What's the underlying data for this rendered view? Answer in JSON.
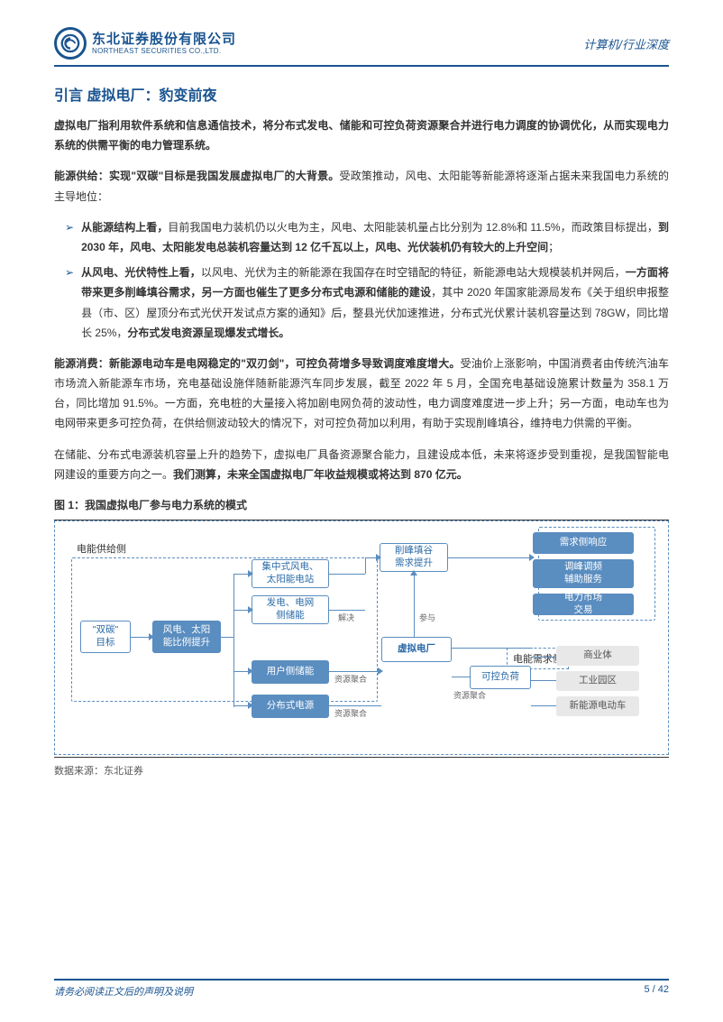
{
  "header": {
    "logo_cn": "东北证券股份有限公司",
    "logo_en": "NORTHEAST SECURITIES CO.,LTD.",
    "right": "计算机/行业深度"
  },
  "title": "引言 虚拟电厂：豹变前夜",
  "intro": "虚拟电厂指利用软件系统和信息通信技术，将分布式发电、储能和可控负荷资源聚合并进行电力调度的协调优化，从而实现电力系统的供需平衡的电力管理系统。",
  "p1_lead": "能源供给：实现\"双碳\"目标是我国发展虚拟电厂的大背景。",
  "p1_rest": "受政策推动，风电、太阳能等新能源将逐渐占据未来我国电力系统的主导地位：",
  "b1_a": "从能源结构上看，",
  "b1_b": "目前我国电力装机仍以火电为主，风电、太阳能装机量占比分别为 12.8%和 11.5%，而政策目标提出，",
  "b1_c": "到 2030 年，风电、太阳能发电总装机容量达到 12 亿千瓦以上，风电、光伏装机仍有较大的上升空间",
  "b1_d": "；",
  "b2_a": "从风电、光伏特性上看，",
  "b2_b": "以风电、光伏为主的新能源在我国存在时空错配的特征，新能源电站大规模装机并网后，",
  "b2_c": "一方面将带来更多削峰填谷需求，另一方面也催生了更多分布式电源和储能的建设",
  "b2_d": "，其中 2020 年国家能源局发布《关于组织申报整县（市、区）屋顶分布式光伏开发试点方案的通知》后，整县光伏加速推进，分布式光伏累计装机容量达到 78GW，同比增长 25%，",
  "b2_e": "分布式发电资源呈现爆发式增长。",
  "p2_lead": "能源消费：新能源电动车是电网稳定的\"双刃剑\"，可控负荷增多导致调度难度增大。",
  "p2_rest": "受油价上涨影响，中国消费者由传统汽油车市场流入新能源车市场，充电基础设施伴随新能源汽车同步发展，截至 2022 年 5 月，全国充电基础设施累计数量为 358.1 万台，同比增加 91.5%。一方面，充电桩的大量接入将加剧电网负荷的波动性，电力调度难度进一步上升；另一方面，电动车也为电网带来更多可控负荷，在供给侧波动较大的情况下，对可控负荷加以利用，有助于实现削峰填谷，维持电力供需的平衡。",
  "p3_a": "在储能、分布式电源装机容量上升的趋势下，虚拟电厂具备资源聚合能力，且建设成本低，未来将逐步受到重视，是我国智能电网建设的重要方向之一。",
  "p3_b": "我们测算，未来全国虚拟电厂年收益规模或将达到 870 亿元。",
  "figure_title": "图 1：我国虚拟电厂参与电力系统的模式",
  "diagram": {
    "supply_label": "电能供给侧",
    "demand_label": "电能需求侧",
    "n_dual": "\"双碳\"\n目标",
    "n_wind": "风电、太阳\n能比例提升",
    "n_central": "集中式风电、\n太阳能电站",
    "n_gen": "发电、电网\n侧储能",
    "n_user": "用户侧储能",
    "n_dist": "分布式电源",
    "n_peak": "削峰填谷\n需求提升",
    "n_vpp": "虚拟电厂",
    "n_load": "可控负荷",
    "n_resp": "需求侧响应",
    "n_freq": "调峰调频\n辅助服务",
    "n_market": "电力市场\n交易",
    "n_biz": "商业体",
    "n_park": "工业园区",
    "n_ev": "新能源电动车",
    "l_solve": "解决",
    "l_join": "参与",
    "l_agg1": "资源聚合",
    "l_agg2": "资源聚合",
    "l_agg3": "资源聚合"
  },
  "source": "数据来源：东北证券",
  "footer": {
    "left": "请务必阅读正文后的声明及说明",
    "right": "5 / 42"
  }
}
